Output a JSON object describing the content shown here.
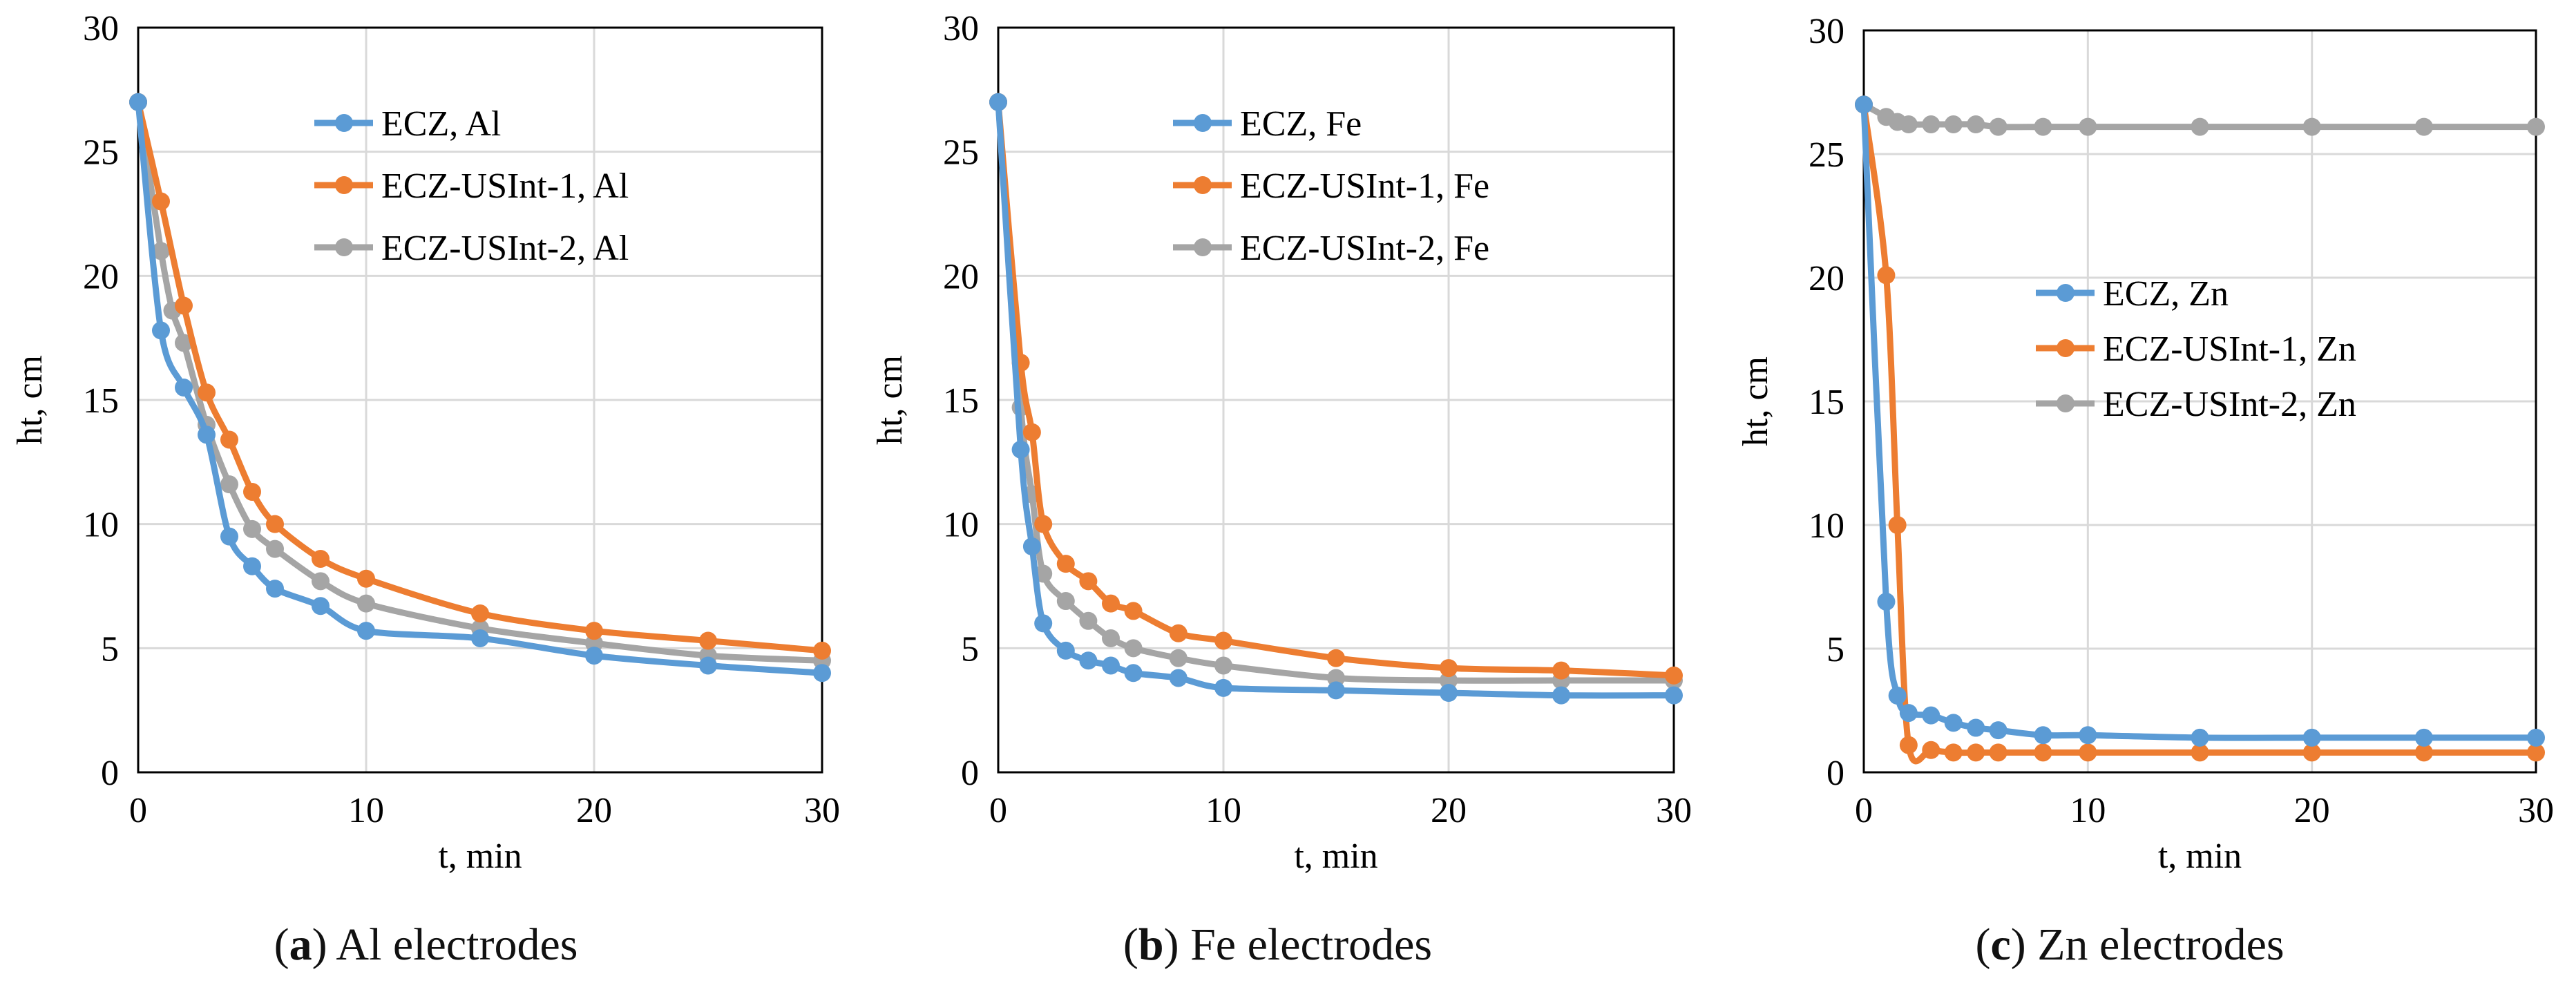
{
  "chart_data": [
    {
      "type": "line",
      "panel_letter": "a",
      "caption": "Al electrodes",
      "xlabel": "t, min",
      "ylabel": "ht, cm",
      "xlim": [
        0,
        30
      ],
      "ylim": [
        0,
        30
      ],
      "xticks": [
        0,
        10,
        20,
        30
      ],
      "yticks": [
        0,
        5,
        10,
        15,
        20,
        25,
        30
      ],
      "grid": true,
      "legend_position": "top-right",
      "series": [
        {
          "name": "ECZ, Al",
          "color": "#5B9BD5",
          "x": [
            0,
            1,
            2,
            3,
            4,
            5,
            6,
            8,
            10,
            15,
            20,
            25,
            30
          ],
          "y": [
            27,
            17.8,
            15.5,
            13.6,
            9.5,
            8.3,
            7.4,
            6.7,
            5.7,
            5.4,
            4.7,
            4.3,
            4.0
          ]
        },
        {
          "name": "ECZ-USInt-1, Al",
          "color": "#ED7D31",
          "x": [
            0,
            1,
            2,
            3,
            4,
            5,
            6,
            8,
            10,
            15,
            20,
            25,
            30
          ],
          "y": [
            27,
            23,
            18.8,
            15.3,
            13.4,
            11.3,
            10.0,
            8.6,
            7.8,
            6.4,
            5.7,
            5.3,
            4.9
          ]
        },
        {
          "name": "ECZ-USInt-2, Al",
          "color": "#A5A5A5",
          "x": [
            0,
            1,
            1.5,
            2,
            3,
            4,
            5,
            6,
            8,
            10,
            15,
            20,
            25,
            30
          ],
          "y": [
            27,
            21,
            18.6,
            17.3,
            14.0,
            11.6,
            9.8,
            9.0,
            7.7,
            6.8,
            5.8,
            5.2,
            4.7,
            4.5
          ]
        }
      ]
    },
    {
      "type": "line",
      "panel_letter": "b",
      "caption": "Fe electrodes",
      "xlabel": "t, min",
      "ylabel": "ht, cm",
      "xlim": [
        0,
        30
      ],
      "ylim": [
        0,
        30
      ],
      "xticks": [
        0,
        10,
        20,
        30
      ],
      "yticks": [
        0,
        5,
        10,
        15,
        20,
        25,
        30
      ],
      "grid": true,
      "legend_position": "top-right",
      "series": [
        {
          "name": "ECZ, Fe",
          "color": "#5B9BD5",
          "x": [
            0,
            1,
            1.5,
            2,
            3,
            4,
            5,
            6,
            8,
            10,
            15,
            20,
            25,
            30
          ],
          "y": [
            27,
            13.0,
            9.1,
            6.0,
            4.9,
            4.5,
            4.3,
            4.0,
            3.8,
            3.4,
            3.3,
            3.2,
            3.1,
            3.1
          ]
        },
        {
          "name": "ECZ-USInt-1, Fe",
          "color": "#ED7D31",
          "x": [
            0,
            1,
            1.5,
            2,
            3,
            4,
            5,
            6,
            8,
            10,
            15,
            20,
            25,
            30
          ],
          "y": [
            27,
            16.5,
            13.7,
            10.0,
            8.4,
            7.7,
            6.8,
            6.5,
            5.6,
            5.3,
            4.6,
            4.2,
            4.1,
            3.9
          ]
        },
        {
          "name": "ECZ-USInt-2, Fe",
          "color": "#A5A5A5",
          "x": [
            0,
            1,
            1.5,
            2,
            3,
            4,
            5,
            6,
            8,
            10,
            15,
            20,
            25,
            30
          ],
          "y": [
            27,
            14.7,
            11.2,
            8.0,
            6.9,
            6.1,
            5.4,
            5.0,
            4.6,
            4.3,
            3.8,
            3.7,
            3.7,
            3.7
          ]
        }
      ]
    },
    {
      "type": "line",
      "panel_letter": "c",
      "caption": "Zn electrodes",
      "xlabel": "t, min",
      "ylabel": "ht, cm",
      "xlim": [
        0,
        30
      ],
      "ylim": [
        0,
        30
      ],
      "xticks": [
        0,
        10,
        20,
        30
      ],
      "yticks": [
        0,
        5,
        10,
        15,
        20,
        25,
        30
      ],
      "grid": true,
      "legend_position": "center-right",
      "series": [
        {
          "name": "ECZ, Zn",
          "color": "#5B9BD5",
          "x": [
            0,
            1,
            1.5,
            2,
            3,
            4,
            5,
            6,
            8,
            10,
            15,
            20,
            25,
            30
          ],
          "y": [
            27,
            6.9,
            3.1,
            2.4,
            2.3,
            2.0,
            1.8,
            1.7,
            1.5,
            1.5,
            1.4,
            1.4,
            1.4,
            1.4
          ]
        },
        {
          "name": "ECZ-USInt-1, Zn",
          "color": "#ED7D31",
          "x": [
            0,
            1,
            1.5,
            2,
            3,
            4,
            5,
            6,
            8,
            10,
            15,
            20,
            25,
            30
          ],
          "y": [
            27,
            20.1,
            10.0,
            1.1,
            0.9,
            0.8,
            0.8,
            0.8,
            0.8,
            0.8,
            0.8,
            0.8,
            0.8,
            0.8
          ]
        },
        {
          "name": "ECZ-USInt-2, Zn",
          "color": "#A5A5A5",
          "x": [
            0,
            1,
            1.5,
            2,
            3,
            4,
            5,
            6,
            8,
            10,
            15,
            20,
            25,
            30
          ],
          "y": [
            27,
            26.5,
            26.3,
            26.2,
            26.2,
            26.2,
            26.2,
            26.1,
            26.1,
            26.1,
            26.1,
            26.1,
            26.1,
            26.1
          ]
        }
      ]
    }
  ]
}
